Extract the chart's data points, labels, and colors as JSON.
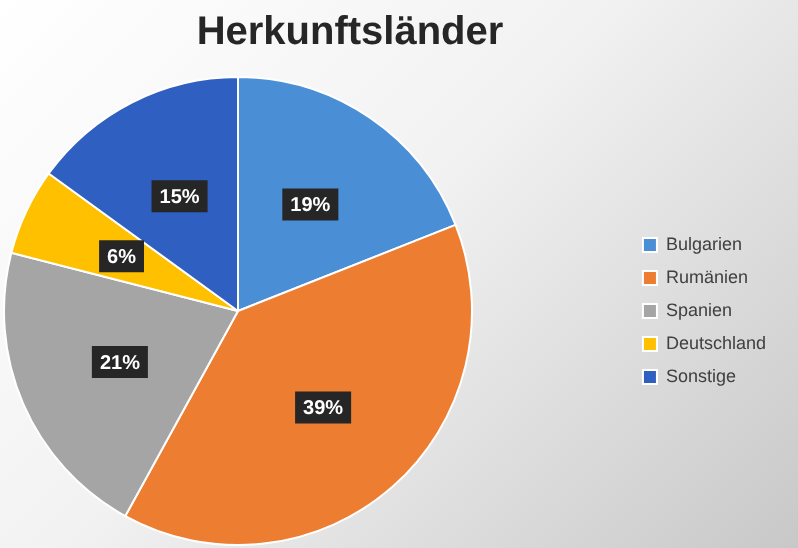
{
  "chart_data": {
    "type": "pie",
    "title": "Herkunftsländer",
    "categories": [
      "Bulgarien",
      "Rumänien",
      "Spanien",
      "Deutschland",
      "Sonstige"
    ],
    "values": [
      19,
      39,
      21,
      6,
      15
    ],
    "value_labels": [
      "19%",
      "39%",
      "21%",
      "6%",
      "15%"
    ],
    "colors": [
      "#4a8fd6",
      "#ed7d31",
      "#a5a5a5",
      "#ffc000",
      "#2e5fc1"
    ],
    "legend": "right"
  }
}
